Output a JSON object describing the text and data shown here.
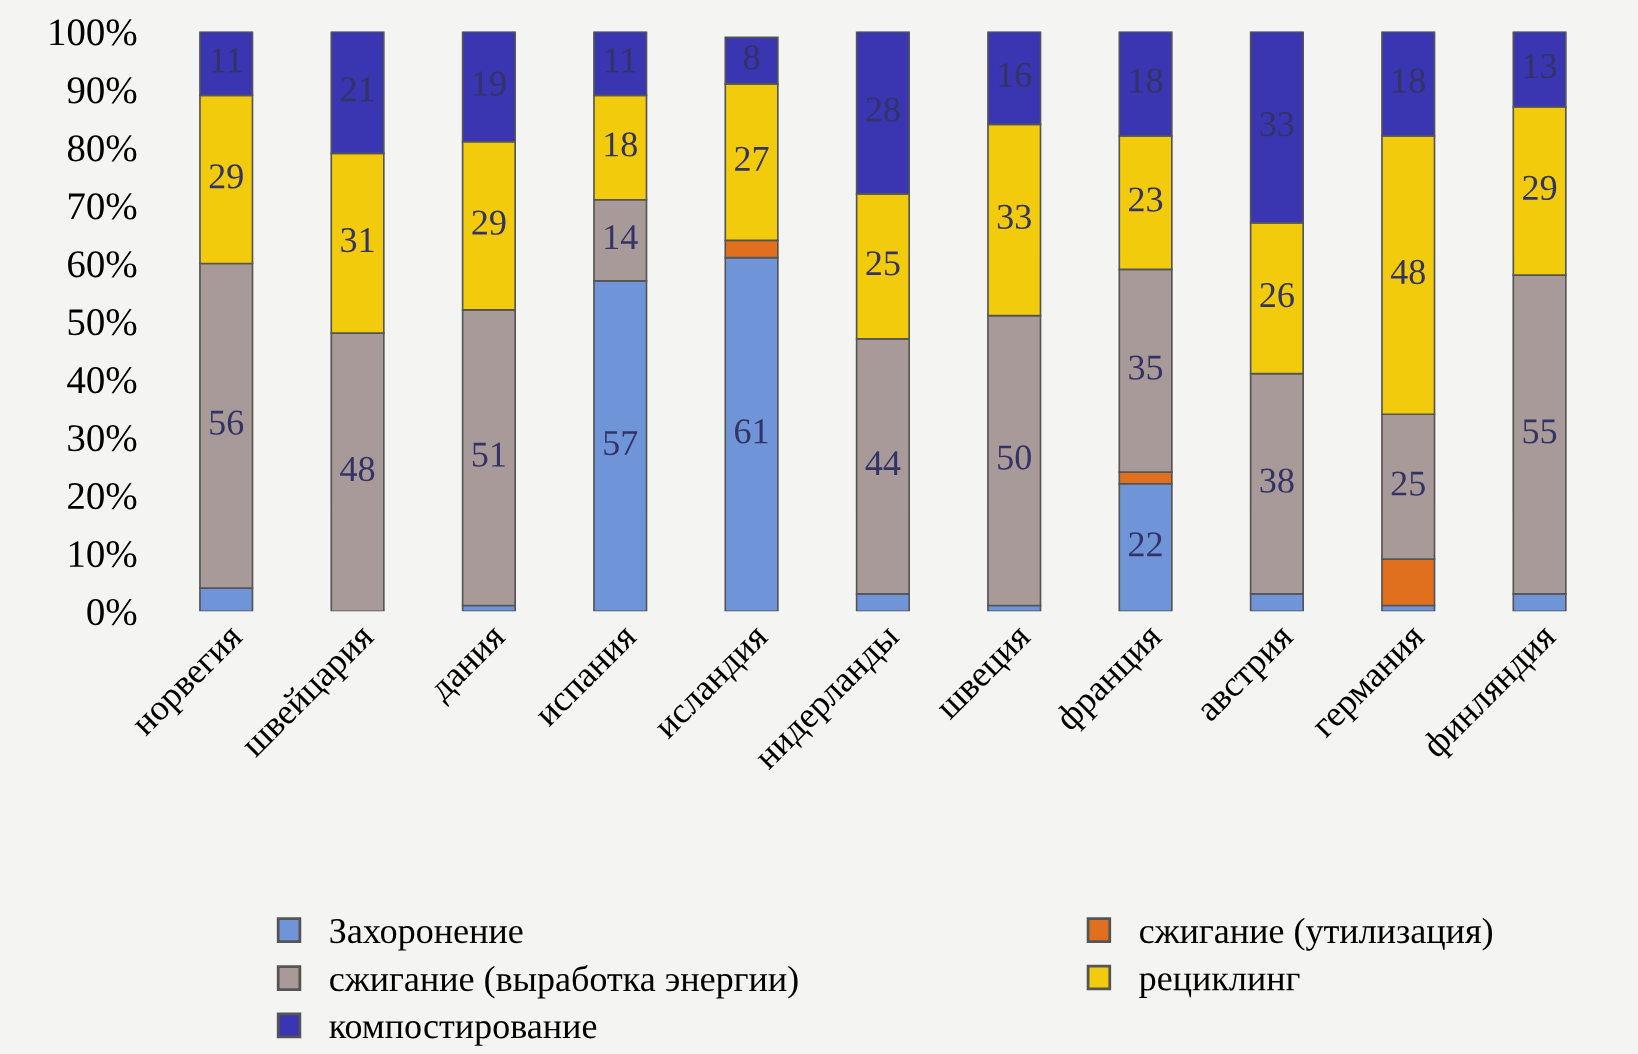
{
  "chart_data": {
    "type": "bar",
    "stacked": true,
    "categories": [
      "норвегия",
      "швейцария",
      "дания",
      "испания",
      "исландия",
      "нидерланды",
      "швеция",
      "франция",
      "австрия",
      "германия",
      "финляндия"
    ],
    "series": [
      {
        "name": "Захоронение",
        "color": "#6f95d8",
        "values": [
          4,
          null,
          1,
          57,
          61,
          3,
          1,
          22,
          3,
          1,
          3
        ],
        "value_labels": [
          null,
          null,
          null,
          "57",
          "61",
          null,
          null,
          "22",
          null,
          null,
          null
        ]
      },
      {
        "name": "сжигание (утилизация)",
        "color": "#e0701e",
        "values": [
          null,
          null,
          null,
          null,
          3,
          null,
          null,
          2,
          null,
          8,
          null
        ],
        "value_labels": [
          null,
          null,
          null,
          null,
          null,
          null,
          null,
          null,
          null,
          null,
          null
        ]
      },
      {
        "name": "сжигание (выработка энергии)",
        "color": "#a89a98",
        "values": [
          56,
          48,
          51,
          14,
          null,
          44,
          50,
          35,
          38,
          25,
          55
        ],
        "value_labels": [
          "56",
          "48",
          "51",
          "14",
          null,
          "44",
          "50",
          "35",
          "38",
          "25",
          "55"
        ]
      },
      {
        "name": "рециклинг",
        "color": "#f2cc0c",
        "values": [
          29,
          31,
          29,
          18,
          27,
          25,
          33,
          23,
          26,
          48,
          29
        ],
        "value_labels": [
          "29",
          "31",
          "29",
          "18",
          "27",
          "25",
          "33",
          "23",
          "26",
          "48",
          "29"
        ]
      },
      {
        "name": "компостирование",
        "color": "#3a35b0",
        "values": [
          11,
          21,
          19,
          11,
          8,
          28,
          16,
          18,
          33,
          18,
          13
        ],
        "value_labels": [
          "11",
          "21",
          "19",
          "11",
          "8",
          "28",
          "16",
          "18",
          "33",
          "18",
          "13"
        ]
      }
    ],
    "ylim": [
      0,
      100
    ],
    "yticks": [
      {
        "value": 0,
        "label": "0%"
      },
      {
        "value": 10,
        "label": "10%"
      },
      {
        "value": 20,
        "label": "20%"
      },
      {
        "value": 30,
        "label": "30%"
      },
      {
        "value": 40,
        "label": "40%"
      },
      {
        "value": 50,
        "label": "50%"
      },
      {
        "value": 60,
        "label": "60%"
      },
      {
        "value": 70,
        "label": "70%"
      },
      {
        "value": 80,
        "label": "80%"
      },
      {
        "value": 90,
        "label": "90%"
      },
      {
        "value": 100,
        "label": "100%"
      }
    ],
    "grid": false,
    "legend": "bottom"
  }
}
